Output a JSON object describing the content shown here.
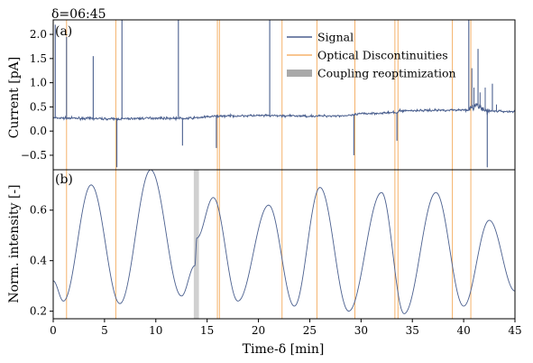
{
  "chart_data": [
    {
      "panel_label": "(a)",
      "type": "line",
      "ylabel": "Current [pA]",
      "xlim": [
        0,
        45
      ],
      "ylim": [
        -0.8,
        2.3
      ],
      "yticks": [
        -0.5,
        0.0,
        0.5,
        1.0,
        1.5,
        2.0
      ],
      "ytick_labels": [
        "−0.5",
        "0.0",
        "0.5",
        "1.0",
        "1.5",
        "2.0"
      ],
      "series": [
        {
          "name": "Signal",
          "color": "#4a5f8e",
          "baseline_points": [
            [
              0,
              0.27
            ],
            [
              4,
              0.26
            ],
            [
              6,
              0.25
            ],
            [
              10,
              0.27
            ],
            [
              13,
              0.26
            ],
            [
              16,
              0.31
            ],
            [
              20,
              0.32
            ],
            [
              25,
              0.31
            ],
            [
              29,
              0.32
            ],
            [
              30,
              0.36
            ],
            [
              33,
              0.38
            ],
            [
              33.6,
              0.38
            ],
            [
              33.7,
              0.42
            ],
            [
              37,
              0.43
            ],
            [
              40.5,
              0.44
            ],
            [
              41.3,
              0.53
            ],
            [
              42,
              0.42
            ],
            [
              45,
              0.4
            ]
          ],
          "spikes": [
            [
              0.2,
              2.2
            ],
            [
              1.3,
              1.95
            ],
            [
              3.9,
              1.55
            ],
            [
              6.2,
              -0.75
            ],
            [
              6.7,
              2.3
            ],
            [
              12.2,
              2.3
            ],
            [
              12.6,
              -0.3
            ],
            [
              15.9,
              -0.35
            ],
            [
              21.1,
              2.3
            ],
            [
              29.3,
              -0.5
            ],
            [
              33.5,
              -0.2
            ],
            [
              40.5,
              2.3
            ],
            [
              41.4,
              1.7
            ],
            [
              42.3,
              -0.75
            ],
            [
              42.8,
              0.98
            ]
          ]
        }
      ],
      "optical_discontinuities": [
        1.3,
        6.1,
        16.0,
        16.2,
        22.3,
        25.7,
        29.4,
        33.3,
        33.6,
        38.9,
        40.7
      ],
      "legend": {
        "location": "top-right",
        "entries": [
          {
            "label": "Signal",
            "color": "#4a5f8e",
            "style": "line"
          },
          {
            "label": "Optical Discontinuities",
            "color": "#f5b26b",
            "style": "line"
          },
          {
            "label": "Coupling reoptimization",
            "color": "#a9a9a9",
            "style": "band"
          }
        ]
      }
    },
    {
      "panel_label": "(b)",
      "type": "line",
      "xlabel": "Time-δ [min]",
      "ylabel": "Norm. intensity [-]",
      "xlim": [
        0,
        45
      ],
      "ylim": [
        0.17,
        0.76
      ],
      "xticks": [
        0,
        5,
        10,
        15,
        20,
        25,
        30,
        35,
        40,
        45
      ],
      "yticks": [
        0.2,
        0.4,
        0.6
      ],
      "ytick_labels": [
        "0.2",
        "0.4",
        "0.6"
      ],
      "series": [
        {
          "name": "Normalized intensity",
          "color": "#4a5f8e",
          "points": [
            [
              0,
              0.32
            ],
            [
              1,
              0.24
            ],
            [
              3.7,
              0.7
            ],
            [
              6.5,
              0.23
            ],
            [
              9.5,
              0.76
            ],
            [
              12.5,
              0.26
            ],
            [
              13.8,
              0.38
            ],
            [
              14.0,
              0.49
            ],
            [
              15.6,
              0.65
            ],
            [
              18.0,
              0.24
            ],
            [
              21.0,
              0.62
            ],
            [
              23.5,
              0.22
            ],
            [
              26.0,
              0.69
            ],
            [
              28.8,
              0.2
            ],
            [
              32.0,
              0.67
            ],
            [
              34.2,
              0.19
            ],
            [
              37.3,
              0.67
            ],
            [
              40.0,
              0.22
            ],
            [
              42.5,
              0.56
            ],
            [
              45,
              0.28
            ]
          ]
        }
      ],
      "optical_discontinuities": [
        1.3,
        6.1,
        16.0,
        16.2,
        22.3,
        25.7,
        29.4,
        33.3,
        33.6,
        38.9,
        40.7
      ],
      "coupling_reoptimization": [
        13.7,
        14.2
      ]
    }
  ],
  "header_label": "δ=06:45"
}
